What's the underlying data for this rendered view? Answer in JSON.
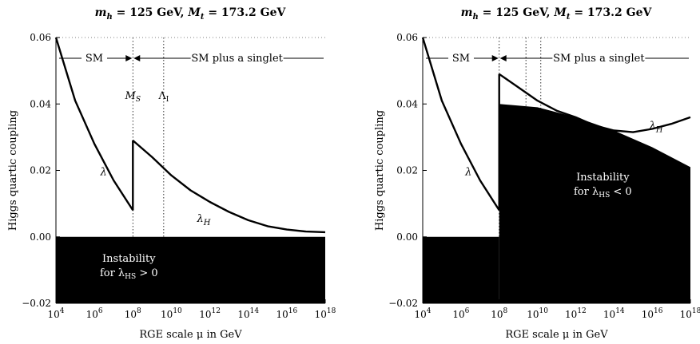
{
  "chart_data": [
    {
      "type": "line",
      "title": "m_h = 125 GeV, M_t = 173.2 GeV",
      "title_parts": {
        "mh": "m",
        "mh_sub": "h",
        "mh_val": " = 125 GeV, ",
        "Mt": "M",
        "Mt_sub": "t",
        "Mt_val": " = 173.2 GeV"
      },
      "xlabel": "RGE scale μ in GeV",
      "ylabel": "Higgs quartic coupling",
      "x_scale": "log",
      "xlim": [
        10000.0,
        1e+18
      ],
      "ylim": [
        -0.02,
        0.06
      ],
      "x_ticks": [
        {
          "base": "10",
          "exp": "4"
        },
        {
          "base": "10",
          "exp": "6"
        },
        {
          "base": "10",
          "exp": "8"
        },
        {
          "base": "10",
          "exp": "10"
        },
        {
          "base": "10",
          "exp": "12"
        },
        {
          "base": "10",
          "exp": "14"
        },
        {
          "base": "10",
          "exp": "16"
        },
        {
          "base": "10",
          "exp": "18"
        }
      ],
      "y_ticks": [
        "0.06",
        "0.04",
        "0.02",
        "0.00",
        "−0.02"
      ],
      "annotations": {
        "sm": "SM",
        "sm_singlet": "SM plus a singlet",
        "ms": "M",
        "ms_sub": "S",
        "lambda_i": "Λ",
        "lambda_i_sub": "I",
        "lambda": "λ",
        "lambda_h": "λ",
        "lambda_h_sub": "H",
        "instability_1": "Instability",
        "instability_2": "for λ",
        "instability_2_sub": "HS",
        "instability_2_end": " > 0"
      },
      "series": [
        {
          "name": "λ",
          "x": [
            10000.0,
            100000.0,
            1000000.0,
            10000000.0,
            100000000.0
          ],
          "y": [
            0.06,
            0.041,
            0.028,
            0.017,
            0.008
          ]
        },
        {
          "name": "λ_H",
          "x": [
            100000000.0,
            1000000000.0,
            10000000000.0,
            100000000000.0,
            1000000000000.0,
            10000000000000.0,
            100000000000000.0,
            1000000000000000.0,
            1e+16,
            1e+17,
            1e+18
          ],
          "y": [
            0.029,
            0.024,
            0.0185,
            0.014,
            0.0105,
            0.0075,
            0.005,
            0.0032,
            0.0022,
            0.0016,
            0.0014
          ]
        }
      ],
      "shaded_regions": [
        {
          "label": "Instability for λHS > 0",
          "x_range": [
            10000.0,
            1e+18
          ],
          "y_range": [
            -0.02,
            0.0
          ]
        }
      ],
      "vlines": [
        {
          "label": "M_S",
          "x": 100000000.0
        },
        {
          "label": "Λ_I",
          "x": 4000000000.0
        }
      ]
    },
    {
      "type": "line",
      "title": "m_h = 125 GeV, M_t = 173.2 GeV",
      "xlabel": "RGE scale μ in GeV",
      "ylabel": "Higgs quartic coupling",
      "x_scale": "log",
      "xlim": [
        10000.0,
        1e+18
      ],
      "ylim": [
        -0.02,
        0.06
      ],
      "x_ticks": [
        {
          "base": "10",
          "exp": "4"
        },
        {
          "base": "10",
          "exp": "6"
        },
        {
          "base": "10",
          "exp": "8"
        },
        {
          "base": "10",
          "exp": "10"
        },
        {
          "base": "10",
          "exp": "12"
        },
        {
          "base": "10",
          "exp": "14"
        },
        {
          "base": "10",
          "exp": "16"
        },
        {
          "base": "10",
          "exp": "18"
        }
      ],
      "y_ticks": [
        "0.06",
        "0.04",
        "0.02",
        "0.00",
        "−0.02"
      ],
      "annotations": {
        "sm": "SM",
        "sm_singlet": "SM plus a singlet",
        "lambda": "λ",
        "lambda_h": "λ",
        "lambda_h_sub": "H",
        "instability_1": "Instability",
        "instability_2": "for λ",
        "instability_2_sub": "HS",
        "instability_2_end": " < 0"
      },
      "series": [
        {
          "name": "λ",
          "x": [
            10000.0,
            100000.0,
            1000000.0,
            10000000.0,
            100000000.0
          ],
          "y": [
            0.06,
            0.041,
            0.028,
            0.017,
            0.008
          ]
        },
        {
          "name": "λ_H",
          "x": [
            100000000.0,
            1000000000.0,
            10000000000.0,
            100000000000.0,
            1000000000000.0,
            10000000000000.0,
            100000000000000.0,
            1000000000000000.0,
            1e+16,
            1e+17,
            1e+18
          ],
          "y": [
            0.049,
            0.045,
            0.041,
            0.038,
            0.036,
            0.0335,
            0.032,
            0.0315,
            0.0325,
            0.034,
            0.036
          ]
        }
      ],
      "shaded_regions": [
        {
          "label": "Instability for λHS < 0",
          "x_range": [
            10000.0,
            100000000.0
          ],
          "y_range": [
            -0.02,
            0.0
          ]
        },
        {
          "label": "Instability for λHS < 0",
          "x_range": [
            100000000.0,
            1e+18
          ],
          "y_range": [
            -0.02,
            "boundary"
          ],
          "boundary": {
            "x": [
              100000000.0,
              10000000000.0,
              1000000000000.0,
              100000000000000.0,
              1e+16,
              1e+18
            ],
            "y": [
              0.04,
              0.039,
              0.036,
              0.032,
              0.027,
              0.021
            ]
          }
        }
      ],
      "vlines": [
        {
          "x": 100000000.0
        },
        {
          "x": 2500000000.0
        },
        {
          "x": 15000000000.0
        }
      ]
    }
  ]
}
